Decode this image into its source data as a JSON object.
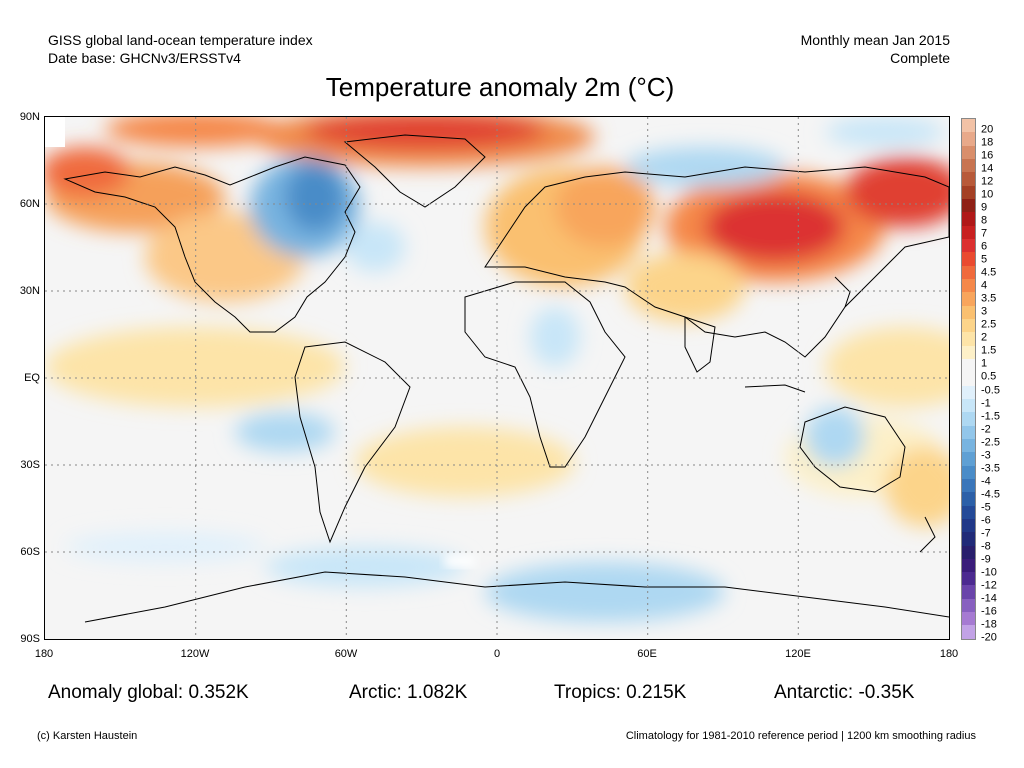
{
  "header": {
    "left_line1": "GISS global land-ocean temperature index",
    "left_line2": "Date base: GHCNv3/ERSSTv4",
    "right_line1": "Monthly mean Jan 2015",
    "right_line2": "Complete"
  },
  "title": "Temperature anomaly 2m (°C)",
  "axes": {
    "lat_labels": [
      "90N",
      "60N",
      "30N",
      "EQ",
      "30S",
      "60S",
      "90S"
    ],
    "lon_labels": [
      "180",
      "120W",
      "60W",
      "0",
      "60E",
      "120E",
      "180"
    ]
  },
  "colorbar": {
    "labels": [
      "20",
      "18",
      "16",
      "14",
      "12",
      "10",
      "9",
      "8",
      "7",
      "6",
      "5",
      "4.5",
      "4",
      "3.5",
      "3",
      "2.5",
      "2",
      "1.5",
      "1",
      "0.5",
      "-0.5",
      "-1",
      "-1.5",
      "-2",
      "-2.5",
      "-3",
      "-3.5",
      "-4",
      "-4.5",
      "-5",
      "-6",
      "-7",
      "-8",
      "-9",
      "-10",
      "-12",
      "-14",
      "-16",
      "-18",
      "-20"
    ],
    "colors": [
      "#f2c2a6",
      "#e8a98a",
      "#d98e6b",
      "#c87451",
      "#b85a3a",
      "#a44025",
      "#8f2016",
      "#b01818",
      "#c82020",
      "#dc3030",
      "#ea4a30",
      "#f06a3c",
      "#f5884a",
      "#f8a55c",
      "#fac070",
      "#fcd48a",
      "#fde4a8",
      "#fdf0c8",
      "#f5f5f5",
      "#f5f5f5",
      "#e0f0fb",
      "#c8e6f8",
      "#aed8f2",
      "#92c6ea",
      "#78b4e0",
      "#5fa0d4",
      "#4a8cc8",
      "#3a76ba",
      "#2c60a8",
      "#244a98",
      "#203888",
      "#202a78",
      "#281e6c",
      "#3a1c7a",
      "#4c2a90",
      "#6a44aa",
      "#8860c0",
      "#a67ad2",
      "#c2a2e6"
    ]
  },
  "stats": {
    "global": "Anomaly global: 0.352K",
    "arctic": "Arctic: 1.082K",
    "tropics": "Tropics: 0.215K",
    "antarctic": "Antarctic: -0.35K"
  },
  "footer": {
    "left": "(c) Karsten Haustein",
    "right": "Climatology for 1981-2010 reference period | 1200 km smoothing radius"
  }
}
